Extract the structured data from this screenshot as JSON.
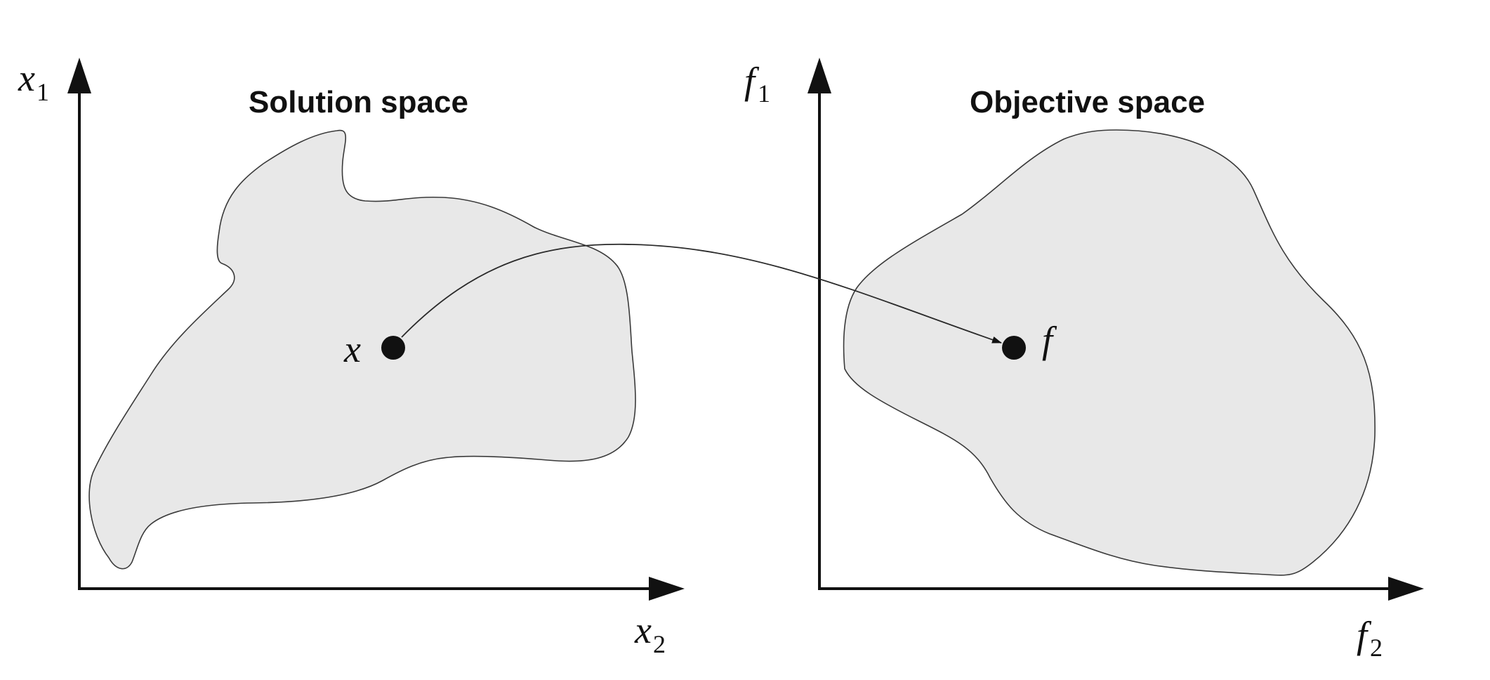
{
  "panels": {
    "solution": {
      "title": "Solution space",
      "y_axis": {
        "var": "x",
        "sub": "1"
      },
      "x_axis": {
        "var": "x",
        "sub": "2"
      },
      "point_label": "x"
    },
    "objective": {
      "title": "Objective space",
      "y_axis": {
        "var": "f",
        "sub": "1"
      },
      "x_axis": {
        "var": "f",
        "sub": "2"
      },
      "point_label": "f"
    }
  },
  "colors": {
    "region_fill": "#e8e8e8",
    "ink": "#111111"
  }
}
